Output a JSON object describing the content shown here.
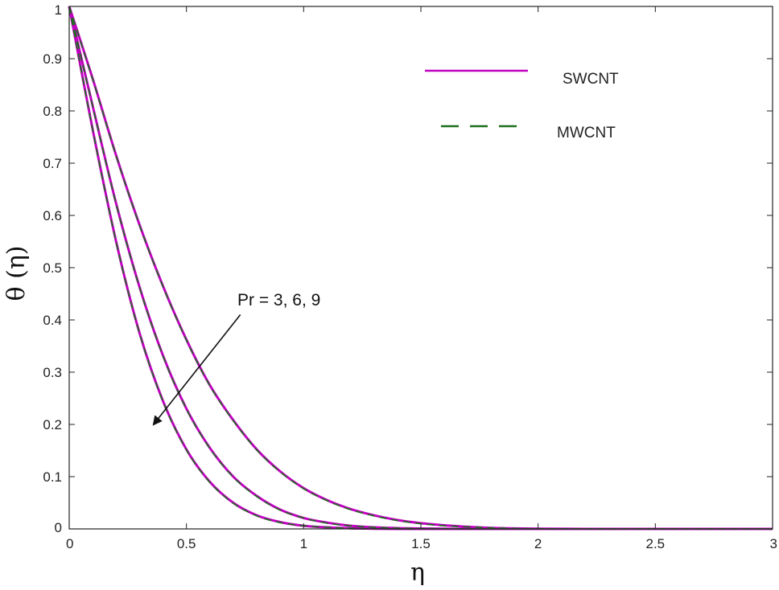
{
  "chart_data": {
    "type": "line",
    "xlabel": "η",
    "ylabel": "θ (η)",
    "xlim": [
      0,
      3
    ],
    "ylim": [
      0,
      1
    ],
    "x_ticks": [
      "0",
      "0.5",
      "1",
      "1.5",
      "2",
      "2.5",
      "3"
    ],
    "y_ticks": [
      "0",
      "0.1",
      "0.2",
      "0.3",
      "0.4",
      "0.5",
      "0.6",
      "0.7",
      "0.8",
      "0.9",
      "1"
    ],
    "grid": false,
    "legend_position": "top-right",
    "legend": [
      {
        "label": "SWCNT",
        "color": "#c000c0",
        "style": "solid"
      },
      {
        "label": "MWCNT",
        "color": "#1a6e1a",
        "style": "dashed"
      }
    ],
    "annotation": {
      "text": "Pr = 3, 6, 9",
      "arrow_from": [
        0.73,
        0.41
      ],
      "arrow_to": [
        0.36,
        0.2
      ]
    },
    "x": [
      0,
      0.1,
      0.2,
      0.3,
      0.4,
      0.5,
      0.6,
      0.7,
      0.8,
      0.9,
      1.0,
      1.1,
      1.2,
      1.3,
      1.4,
      1.5,
      1.6,
      1.7,
      1.8,
      1.9,
      2.0,
      2.2,
      2.4,
      2.6,
      2.8,
      3.0
    ],
    "series": [
      {
        "group": "Pr = 3",
        "color": "#c000c0",
        "style": "solid",
        "values": [
          1.0,
          0.862,
          0.715,
          0.582,
          0.465,
          0.362,
          0.275,
          0.208,
          0.152,
          0.11,
          0.078,
          0.055,
          0.038,
          0.026,
          0.017,
          0.011,
          0.007,
          0.004,
          0.002,
          0.001,
          0.0005,
          0.0,
          0.0,
          0.0,
          0.0,
          0.0
        ]
      },
      {
        "group": "Pr = 3",
        "color": "#1a6e1a",
        "style": "dashed",
        "values": [
          1.0,
          0.861,
          0.714,
          0.581,
          0.464,
          0.361,
          0.274,
          0.207,
          0.151,
          0.109,
          0.077,
          0.054,
          0.037,
          0.025,
          0.016,
          0.01,
          0.006,
          0.004,
          0.002,
          0.001,
          0.0005,
          0.0,
          0.0,
          0.0,
          0.0,
          0.0
        ]
      },
      {
        "group": "Pr = 6",
        "color": "#c000c0",
        "style": "solid",
        "values": [
          1.0,
          0.81,
          0.623,
          0.463,
          0.332,
          0.23,
          0.155,
          0.1,
          0.063,
          0.037,
          0.021,
          0.012,
          0.006,
          0.003,
          0.0015,
          0.0008,
          0.0004,
          0.0,
          0.0,
          0.0,
          0.0,
          0.0,
          0.0,
          0.0,
          0.0,
          0.0
        ]
      },
      {
        "group": "Pr = 6",
        "color": "#1a6e1a",
        "style": "dashed",
        "values": [
          1.0,
          0.809,
          0.622,
          0.462,
          0.331,
          0.229,
          0.154,
          0.099,
          0.062,
          0.036,
          0.021,
          0.011,
          0.006,
          0.003,
          0.0015,
          0.0008,
          0.0004,
          0.0,
          0.0,
          0.0,
          0.0,
          0.0,
          0.0,
          0.0,
          0.0,
          0.0
        ]
      },
      {
        "group": "Pr = 9",
        "color": "#c000c0",
        "style": "solid",
        "values": [
          1.0,
          0.765,
          0.55,
          0.375,
          0.245,
          0.152,
          0.09,
          0.05,
          0.026,
          0.013,
          0.006,
          0.003,
          0.0012,
          0.0005,
          0.0,
          0.0,
          0.0,
          0.0,
          0.0,
          0.0,
          0.0,
          0.0,
          0.0,
          0.0,
          0.0,
          0.0
        ]
      },
      {
        "group": "Pr = 9",
        "color": "#1a6e1a",
        "style": "dashed",
        "values": [
          1.0,
          0.764,
          0.549,
          0.374,
          0.244,
          0.151,
          0.089,
          0.049,
          0.025,
          0.012,
          0.006,
          0.003,
          0.0012,
          0.0005,
          0.0,
          0.0,
          0.0,
          0.0,
          0.0,
          0.0,
          0.0,
          0.0,
          0.0,
          0.0,
          0.0,
          0.0
        ]
      }
    ]
  }
}
